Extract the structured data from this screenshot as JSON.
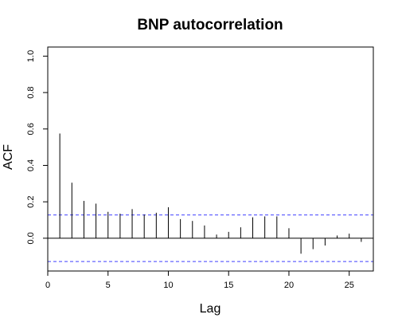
{
  "chart_data": {
    "type": "bar",
    "title": "BNP autocorrelation",
    "xlabel": "Lag",
    "ylabel": "ACF",
    "xlim": [
      0,
      27
    ],
    "ylim": [
      -0.18,
      1.05
    ],
    "x_ticks": [
      0,
      5,
      10,
      15,
      20,
      25
    ],
    "x_tick_labels": [
      "0",
      "5",
      "10",
      "15",
      "20",
      "25"
    ],
    "y_ticks": [
      0.0,
      0.2,
      0.4,
      0.6,
      0.8,
      1.0
    ],
    "y_tick_labels": [
      "0.0",
      "0.2",
      "0.4",
      "0.6",
      "0.8",
      "1.0"
    ],
    "lags": [
      1,
      2,
      3,
      4,
      5,
      6,
      7,
      8,
      9,
      10,
      11,
      12,
      13,
      14,
      15,
      16,
      17,
      18,
      19,
      20,
      21,
      22,
      23,
      24,
      25,
      26
    ],
    "acf": [
      0.575,
      0.305,
      0.205,
      0.19,
      0.145,
      0.135,
      0.16,
      0.13,
      0.14,
      0.17,
      0.105,
      0.095,
      0.07,
      0.02,
      0.035,
      0.06,
      0.115,
      0.12,
      0.12,
      0.055,
      -0.085,
      -0.06,
      -0.04,
      0.015,
      0.025,
      -0.02
    ],
    "confidence_bound": 0.128,
    "grid": false,
    "colors": {
      "bars": "#000000",
      "confidence": "#6666ff",
      "zero_line": "#000000",
      "frame": "#000000"
    }
  }
}
